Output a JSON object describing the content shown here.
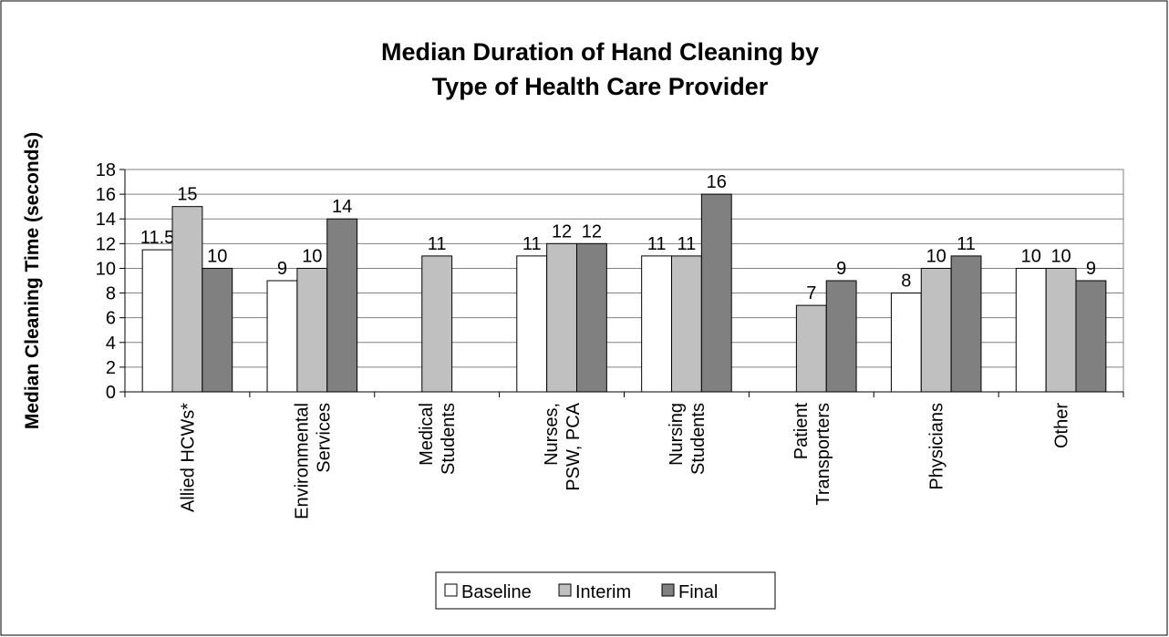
{
  "chart_data": {
    "type": "bar",
    "title": [
      "Median Duration of Hand Cleaning by",
      "Type of Health Care Provider"
    ],
    "y_label": "Median Cleaning Time (seconds)",
    "categories": [
      [
        "Allied HCWs*"
      ],
      [
        "Environmental",
        "Services"
      ],
      [
        "Medical",
        "Students"
      ],
      [
        "Nurses,",
        "PSW, PCA"
      ],
      [
        "Nursing",
        "Students"
      ],
      [
        "Patient",
        "Transporters"
      ],
      [
        "Physicians"
      ],
      [
        "Other"
      ]
    ],
    "series": [
      {
        "name": "Baseline",
        "color": "#ffffff",
        "values": [
          11.5,
          9,
          null,
          11,
          11,
          null,
          8,
          10
        ]
      },
      {
        "name": "Interim",
        "color": "#c0c0c0",
        "values": [
          15,
          10,
          11,
          12,
          11,
          7,
          10,
          10
        ]
      },
      {
        "name": "Final",
        "color": "#808080",
        "values": [
          10,
          14,
          null,
          12,
          16,
          9,
          11,
          9
        ]
      }
    ],
    "ylim": [
      0,
      18
    ],
    "yticks": [
      0,
      2,
      4,
      6,
      8,
      10,
      12,
      14,
      16,
      18
    ],
    "grid": true,
    "legend": "bottom"
  }
}
